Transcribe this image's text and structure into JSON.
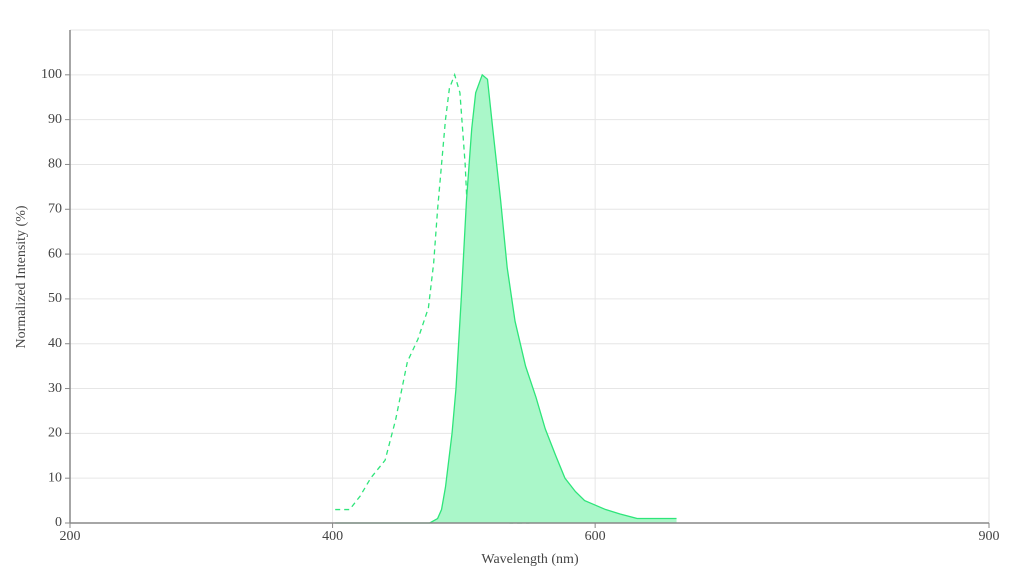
{
  "chart_data": {
    "type": "line",
    "x_label": "Wavelength (nm)",
    "y_label": "Normalized Intensity (%)",
    "xlim": [
      200,
      900
    ],
    "xticks": [
      200,
      400,
      600,
      900
    ],
    "ylim": [
      0,
      110
    ],
    "yticks": [
      0,
      10,
      20,
      30,
      40,
      50,
      60,
      70,
      80,
      90,
      100
    ],
    "grid": true,
    "series": [
      {
        "color": "#2ee57a",
        "dashed": true,
        "filled": false,
        "x": [
          402,
          413,
          421,
          429,
          440,
          448,
          457,
          465,
          473,
          477,
          480,
          483,
          486,
          489,
          493,
          497,
          501,
          505,
          509,
          512,
          517,
          521,
          528,
          535,
          550
        ],
        "values": [
          3,
          3,
          6,
          10,
          14,
          23,
          36,
          41,
          48,
          58,
          70,
          80,
          90,
          97,
          100,
          96,
          80,
          55,
          33,
          18,
          8,
          4,
          1,
          0,
          0
        ]
      },
      {
        "color": "#2ee57a",
        "fill_color": "#aaf7c9",
        "dashed": false,
        "filled": true,
        "x": [
          402,
          474,
          480,
          483,
          486,
          491,
          494,
          498,
          502,
          506,
          509,
          514,
          518,
          522,
          528,
          533,
          539,
          547,
          555,
          562,
          570,
          577,
          585,
          592,
          600,
          608,
          619,
          632,
          662
        ],
        "values": [
          0,
          0,
          1,
          3,
          8,
          20,
          30,
          50,
          72,
          88,
          96,
          100,
          99,
          88,
          72,
          57,
          45,
          35,
          28,
          21,
          15,
          10,
          7,
          5,
          4,
          3,
          2,
          1,
          1
        ]
      }
    ]
  }
}
